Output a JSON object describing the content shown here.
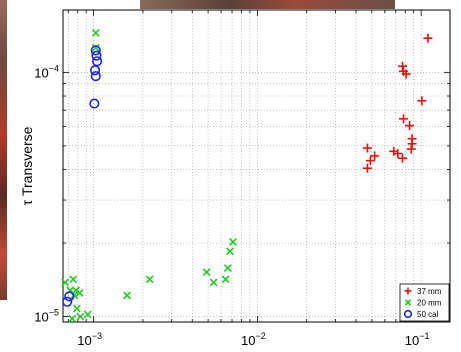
{
  "chart_data": {
    "type": "scatter",
    "title": "",
    "xlabel": "",
    "ylabel": "τ Transverse",
    "xscale": "log",
    "yscale": "log",
    "xlim": [
      0.00065,
      0.15
    ],
    "ylim": [
      9.5e-06,
      0.00018
    ],
    "grid": true,
    "legend_position": "bottom-right",
    "x_ticks": [
      {
        "value": 0.001,
        "base": "10",
        "exp": "−3"
      },
      {
        "value": 0.01,
        "base": "10",
        "exp": "−2"
      },
      {
        "value": 0.1,
        "base": "10",
        "exp": "−1"
      }
    ],
    "y_ticks": [
      {
        "value": 1e-05,
        "base": "10",
        "exp": "−5"
      },
      {
        "value": 0.0001,
        "base": "10",
        "exp": "−4"
      }
    ],
    "series": [
      {
        "name": "37 mm",
        "marker": "plus",
        "color": "#e8110c",
        "points": [
          [
            0.11,
            0.000138
          ],
          [
            0.077,
            0.000106
          ],
          [
            0.078,
            0.000101
          ],
          [
            0.081,
            9.85e-05
          ],
          [
            0.101,
            7.65e-05
          ],
          [
            0.078,
            6.45e-05
          ],
          [
            0.085,
            6.05e-05
          ],
          [
            0.088,
            5.35e-05
          ],
          [
            0.088,
            5.1e-05
          ],
          [
            0.047,
            4.9e-05
          ],
          [
            0.052,
            4.55e-05
          ],
          [
            0.049,
            4.35e-05
          ],
          [
            0.068,
            4.75e-05
          ],
          [
            0.072,
            4.65e-05
          ],
          [
            0.077,
            4.45e-05
          ],
          [
            0.087,
            4.85e-05
          ],
          [
            0.047,
            4.05e-05
          ]
        ]
      },
      {
        "name": "20 mm",
        "marker": "x",
        "color": "#22c81e",
        "points": [
          [
            0.00103,
            0.000145
          ],
          [
            0.00103,
            0.000126
          ],
          [
            0.00067,
            1.38e-05
          ],
          [
            0.00072,
            1.28e-05
          ],
          [
            0.00075,
            1.42e-05
          ],
          [
            0.00078,
            1.28e-05
          ],
          [
            0.00076,
            1.22e-05
          ],
          [
            0.00082,
            1.25e-05
          ],
          [
            0.00079,
            1.08e-05
          ],
          [
            0.00074,
            9.8e-06
          ],
          [
            0.00083,
            1e-05
          ],
          [
            0.00092,
            1.02e-05
          ],
          [
            0.0016,
            1.22e-05
          ],
          [
            0.0022,
            1.42e-05
          ],
          [
            0.0049,
            1.52e-05
          ],
          [
            0.0054,
            1.38e-05
          ],
          [
            0.0064,
            1.42e-05
          ],
          [
            0.0066,
            1.58e-05
          ],
          [
            0.0068,
            1.85e-05
          ],
          [
            0.0071,
            2.02e-05
          ]
        ]
      },
      {
        "name": "50 cal",
        "marker": "circle",
        "color": "#1e28e4",
        "points": [
          [
            0.00103,
            0.000123
          ],
          [
            0.00104,
            0.000117
          ],
          [
            0.00105,
            0.000111
          ],
          [
            0.00102,
            0.000102
          ],
          [
            0.00103,
            9.65e-05
          ],
          [
            0.00101,
            7.45e-05
          ],
          [
            0.00071,
            1.21e-05
          ],
          [
            0.00069,
            1.15e-05
          ]
        ]
      }
    ]
  }
}
